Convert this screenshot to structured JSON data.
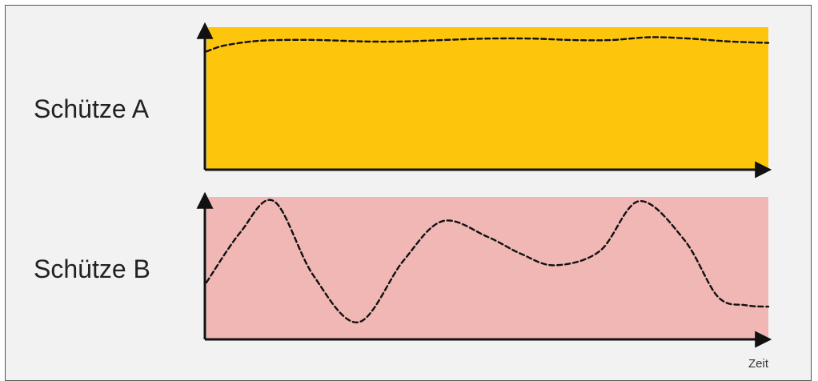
{
  "labels": {
    "row_a": "Schütze A",
    "row_b": "Schütze B",
    "x_axis": "Zeit"
  },
  "colors": {
    "panel_a": "#fdc50b",
    "panel_b": "#f0b7b5",
    "axis": "#111111",
    "curve": "#111111",
    "background": "#f2f2f2"
  },
  "chart_data": [
    {
      "type": "line",
      "title": "",
      "series": [
        {
          "name": "Schütze A",
          "x": [
            0,
            0.03,
            0.08,
            0.13,
            0.2,
            0.28,
            0.35,
            0.42,
            0.5,
            0.58,
            0.65,
            0.72,
            0.79,
            0.86,
            0.93,
            1.0
          ],
          "y": [
            0.83,
            0.87,
            0.9,
            0.91,
            0.91,
            0.9,
            0.9,
            0.91,
            0.92,
            0.92,
            0.91,
            0.91,
            0.93,
            0.92,
            0.9,
            0.89
          ]
        }
      ],
      "xlabel": "",
      "ylabel": "",
      "xlim": [
        0,
        1
      ],
      "ylim": [
        0,
        1
      ],
      "grid": false
    },
    {
      "type": "line",
      "title": "",
      "series": [
        {
          "name": "Schütze B",
          "x": [
            0,
            0.06,
            0.12,
            0.19,
            0.27,
            0.35,
            0.42,
            0.5,
            0.56,
            0.62,
            0.7,
            0.77,
            0.85,
            0.91,
            0.96,
            1.0
          ],
          "y": [
            0.4,
            0.75,
            0.97,
            0.45,
            0.12,
            0.55,
            0.83,
            0.72,
            0.6,
            0.52,
            0.62,
            0.97,
            0.7,
            0.3,
            0.24,
            0.23
          ]
        }
      ],
      "xlabel": "Zeit",
      "ylabel": "",
      "xlim": [
        0,
        1
      ],
      "ylim": [
        0,
        1
      ],
      "grid": false
    }
  ]
}
